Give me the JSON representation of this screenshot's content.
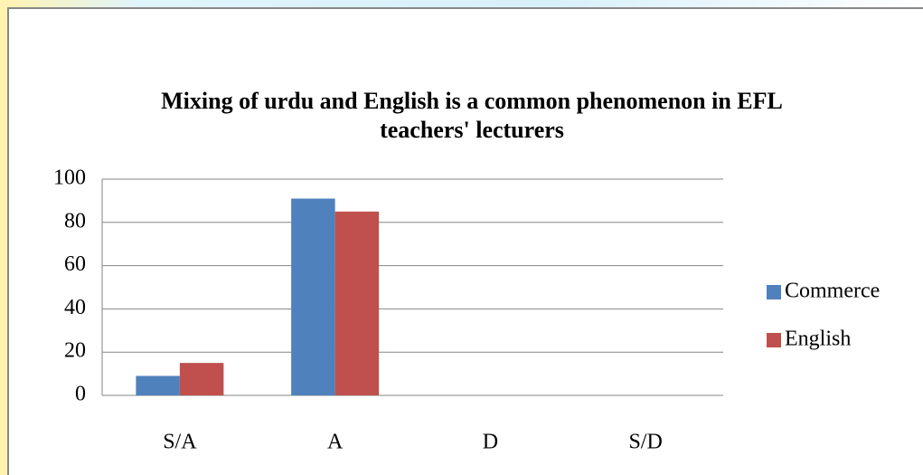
{
  "chart_data": {
    "type": "bar",
    "title": "Mixing of urdu and English is a common phenomenon in EFL teachers' lecturers",
    "categories": [
      "S/A",
      "A",
      "D",
      "S/D"
    ],
    "series": [
      {
        "name": "Commerce",
        "color": "#4f81bd",
        "values": [
          9,
          91,
          0,
          0
        ]
      },
      {
        "name": "English",
        "color": "#c0504d",
        "values": [
          15,
          85,
          0,
          0
        ]
      }
    ],
    "ylim": [
      0,
      100
    ],
    "yticks": [
      0,
      20,
      40,
      60,
      80,
      100
    ],
    "grid": true,
    "legend": "right"
  }
}
